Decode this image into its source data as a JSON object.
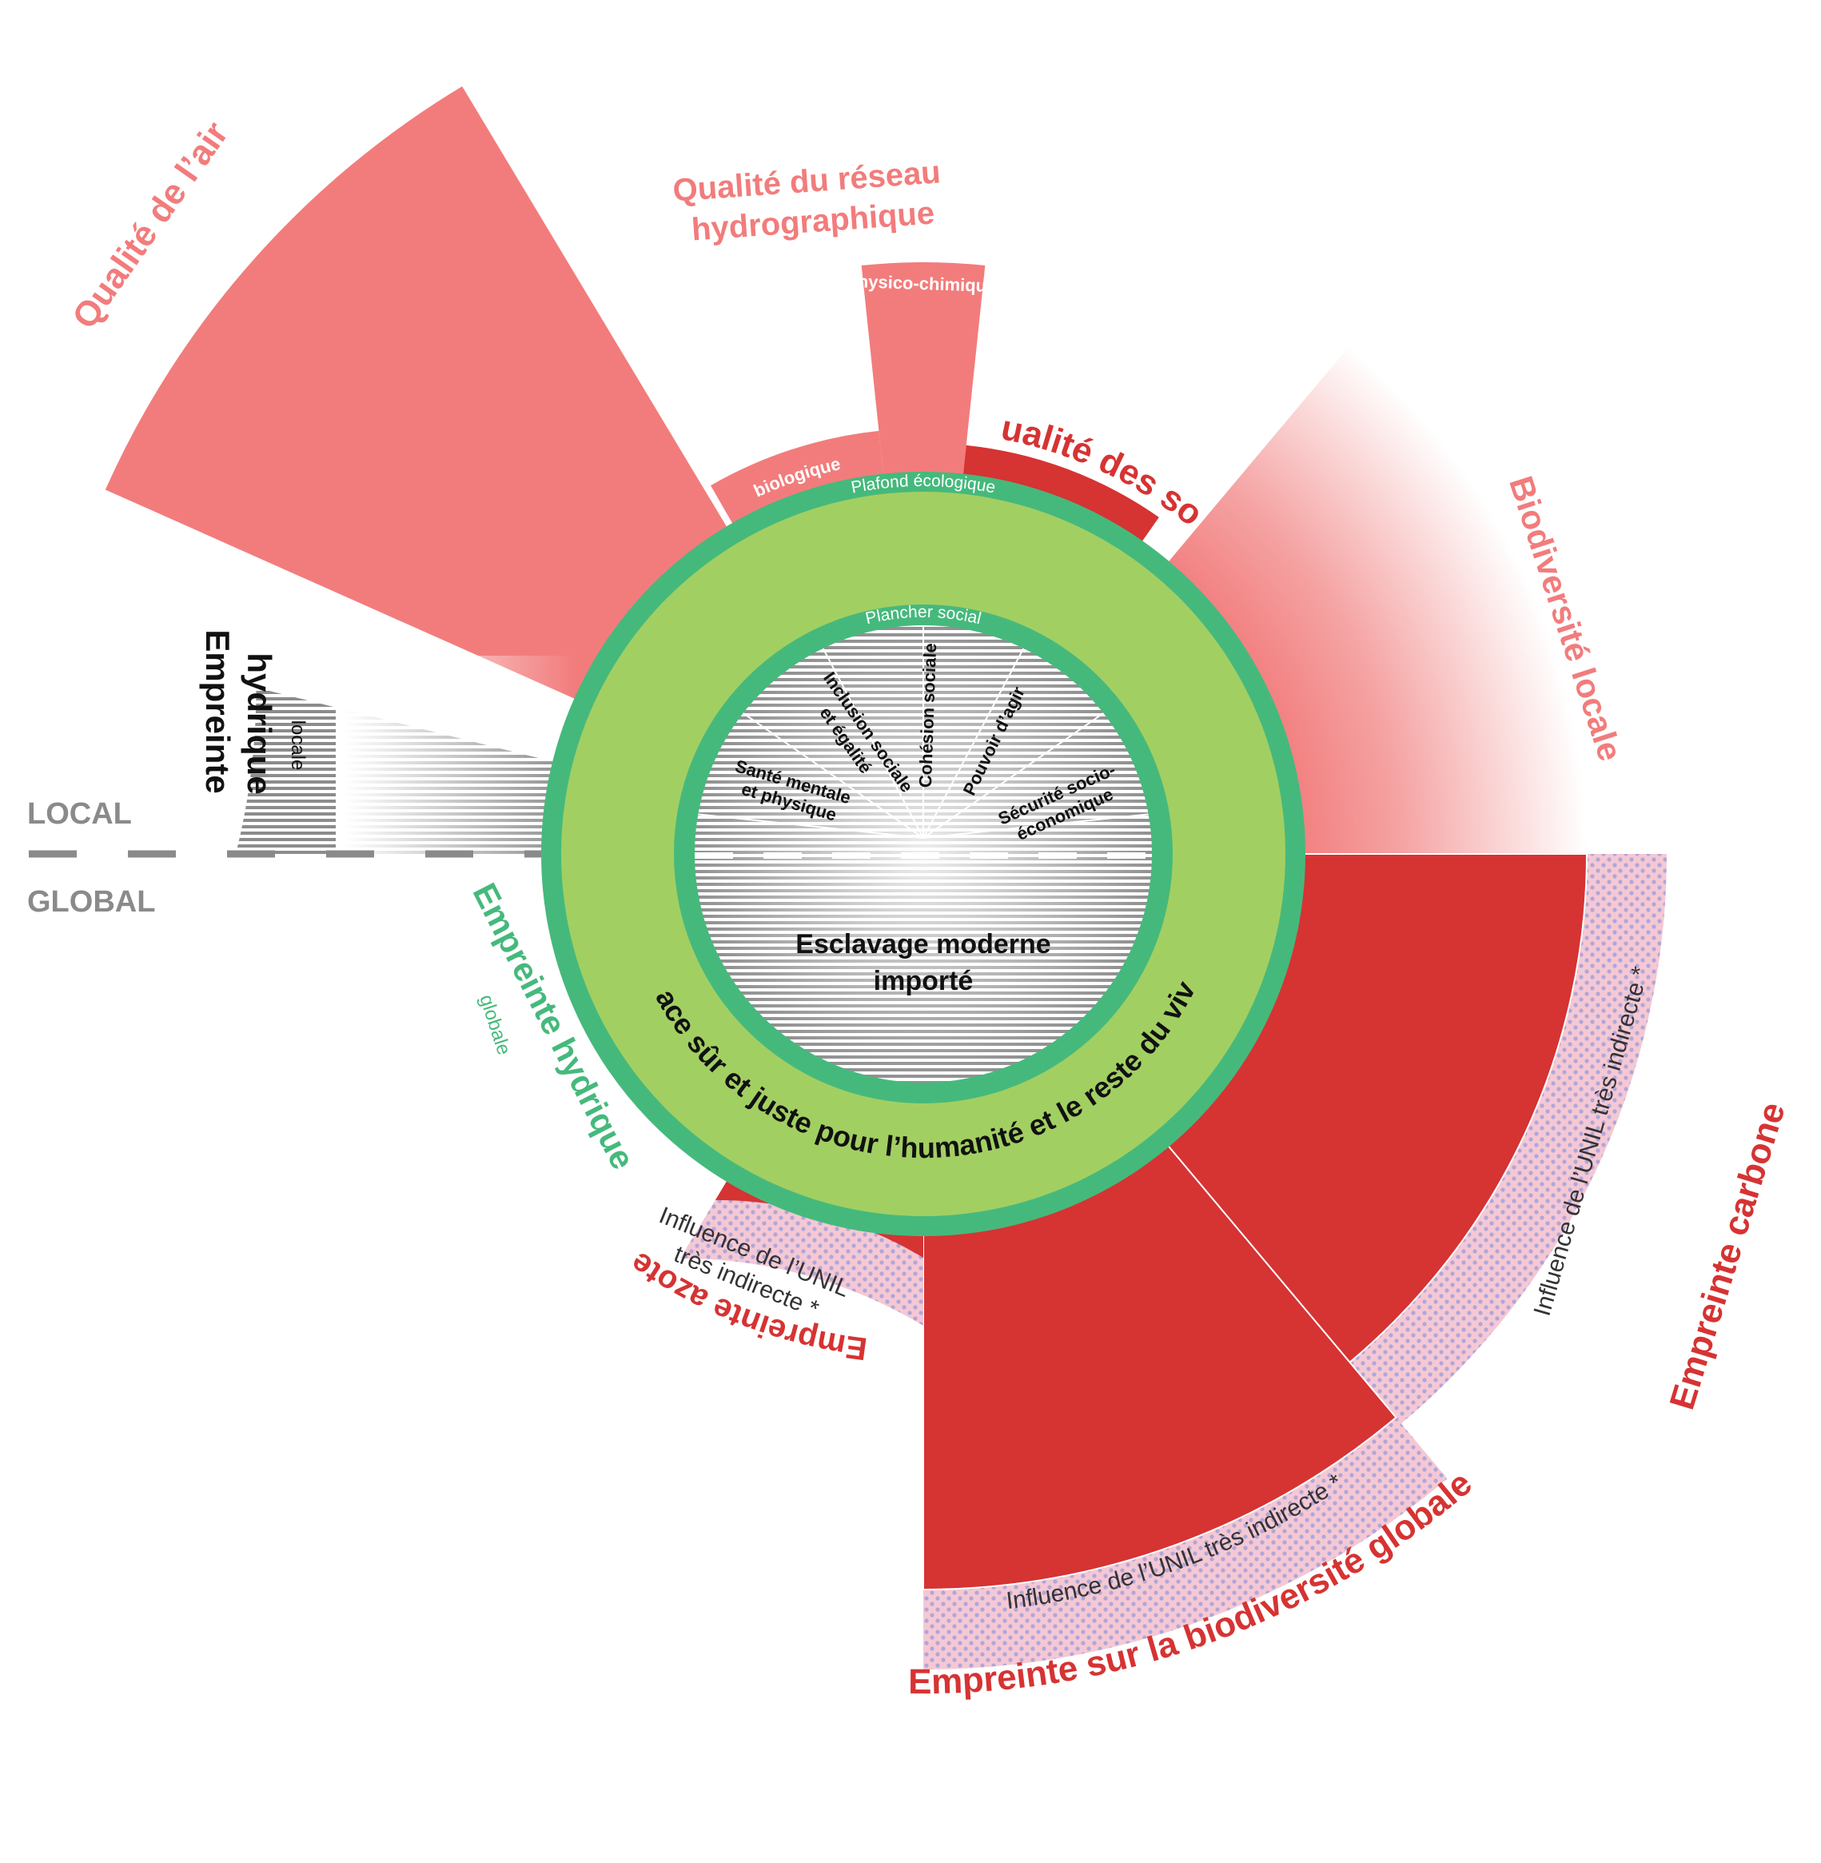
{
  "divider": {
    "local": "LOCAL",
    "global": "GLOBAL"
  },
  "center": {
    "ceiling": "Plafond écologique",
    "floor": "Plancher social",
    "safe_space": "Espace sûr et juste pour l’humanité et le reste du vivant",
    "core_line1": "Esclavage moderne",
    "core_line2": "importé"
  },
  "social": {
    "s1a": "Santé mentale",
    "s1b": "et physique",
    "s2a": "Inclusion sociale",
    "s2b": "et égalité",
    "s3": "Cohésion sociale",
    "s4": "Pouvoir d’agir",
    "s5a": "Sécurité socio-",
    "s5b": "économique"
  },
  "sectors": {
    "air": "Qualité de l’air",
    "hydro_title1": "Qualité du réseau",
    "hydro_title2": "hydrographique",
    "physico": "Physico-chimique",
    "biologique": "biologique",
    "sols": "Qualité des sols",
    "biodiv_locale": "Biodiversité locale",
    "carbone": "Empreinte carbone",
    "biodiv_globale": "Empreinte sur la biodiversité globale",
    "azote": "Empreinte azote",
    "hydrique_local1": "Empreinte",
    "hydrique_local2": "hydrique",
    "hydrique_local3": "locale",
    "hydrique_global1": "Empreinte hydrique",
    "hydrique_global2": "globale",
    "influence_long": "Influence de l’UNIL très indirecte *",
    "influence_a": "Influence de l’UNIL",
    "influence_b": "très indirecte *"
  },
  "colors": {
    "pink": "#f27c7c",
    "red": "#d63333",
    "green_ring": "#45b97c",
    "green_fill": "#a2cf62",
    "hatch": "#f4c8d4",
    "dots": "#b0a6d8"
  }
}
